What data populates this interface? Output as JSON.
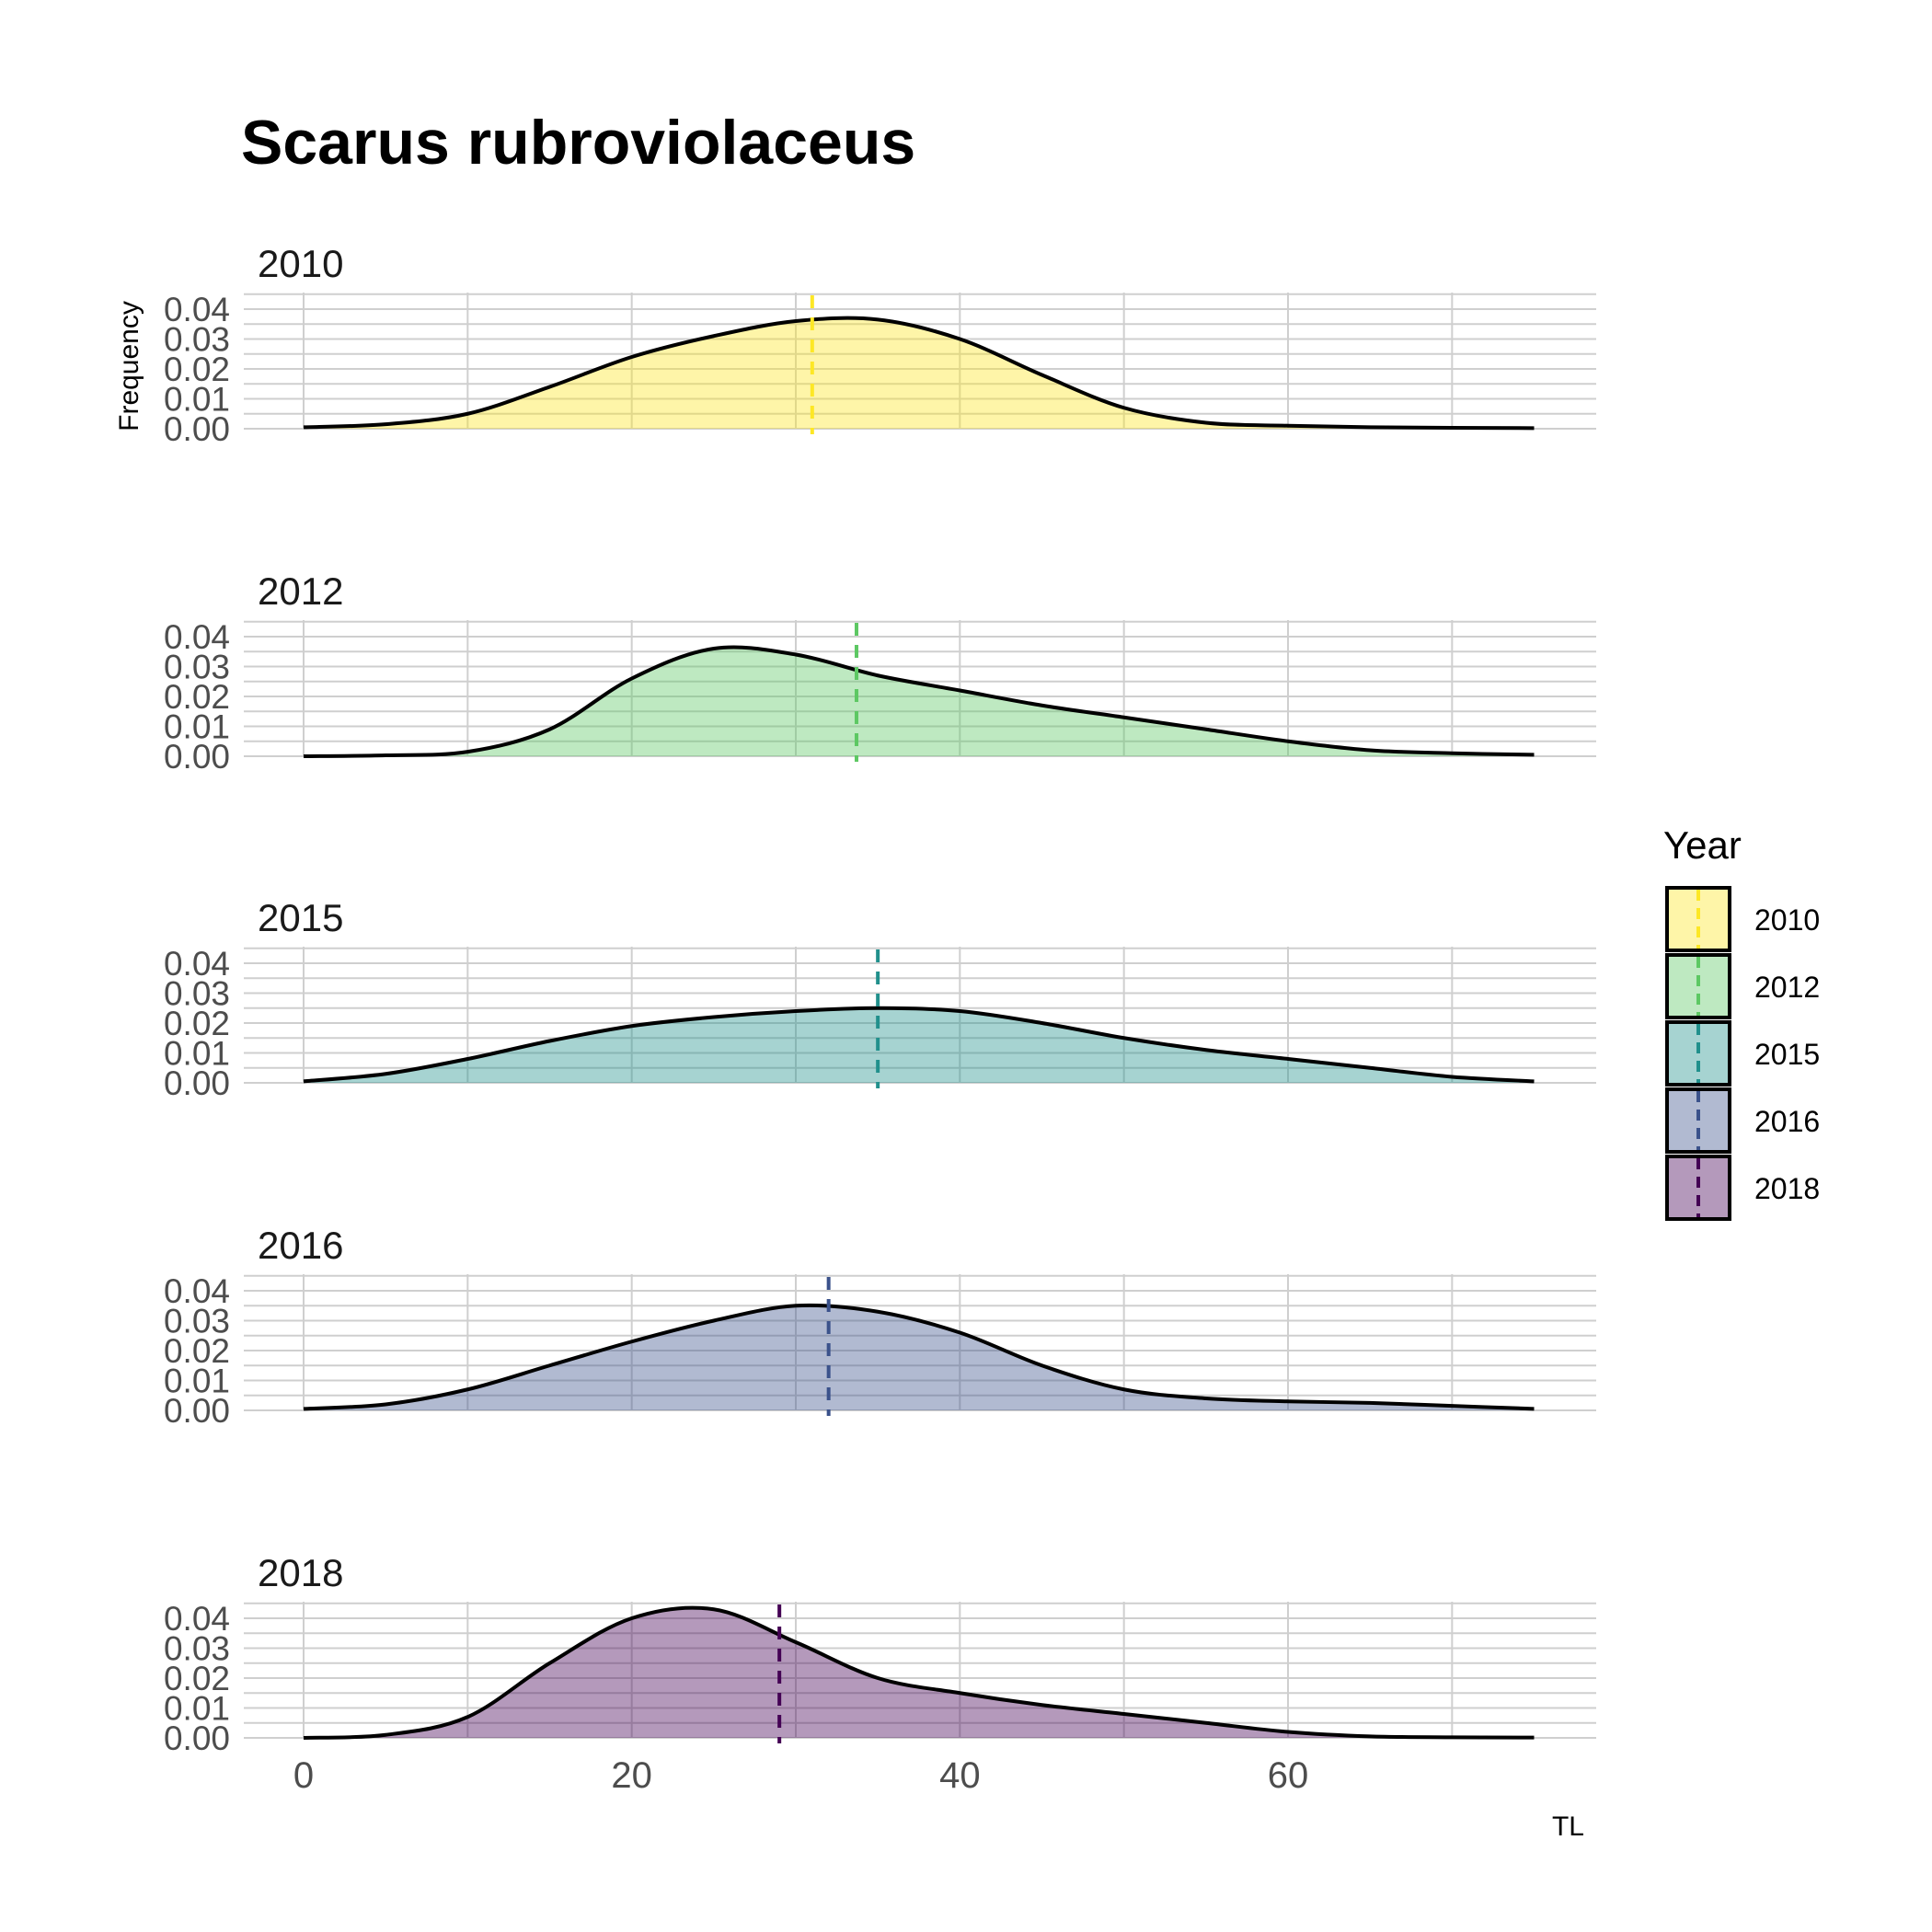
{
  "chart_data": {
    "type": "area",
    "title": "Scarus rubroviolaceus",
    "xlabel": "TL",
    "ylabel": "Frequency",
    "xlim": [
      0,
      75
    ],
    "ylim": [
      0,
      0.045
    ],
    "x_ticks": [
      0,
      20,
      40,
      60
    ],
    "x_tick_labels": [
      "0",
      "20",
      "40",
      "60"
    ],
    "y_ticks": [
      0,
      0.01,
      0.02,
      0.03,
      0.04
    ],
    "y_tick_labels": [
      "0.00",
      "0.01",
      "0.02",
      "0.03",
      "0.04"
    ],
    "grid": true,
    "legend": {
      "title": "Year",
      "placement": "right"
    },
    "x": [
      0,
      5,
      10,
      15,
      20,
      25,
      30,
      35,
      40,
      45,
      50,
      55,
      60,
      65,
      70,
      75
    ],
    "series": [
      {
        "name": "2010",
        "color": "#FDE725",
        "mean": 31,
        "values": [
          0.0005,
          0.0015,
          0.005,
          0.014,
          0.024,
          0.031,
          0.036,
          0.0365,
          0.03,
          0.018,
          0.007,
          0.002,
          0.001,
          0.0005,
          0.0003,
          0.0002
        ]
      },
      {
        "name": "2012",
        "color": "#5DC863",
        "mean": 33.7,
        "values": [
          0.0,
          0.0003,
          0.0015,
          0.009,
          0.026,
          0.036,
          0.034,
          0.027,
          0.022,
          0.017,
          0.013,
          0.009,
          0.005,
          0.002,
          0.001,
          0.0005
        ]
      },
      {
        "name": "2015",
        "color": "#21908C",
        "mean": 35,
        "values": [
          0.0005,
          0.003,
          0.008,
          0.014,
          0.019,
          0.022,
          0.024,
          0.025,
          0.024,
          0.02,
          0.015,
          0.011,
          0.008,
          0.005,
          0.002,
          0.0005
        ]
      },
      {
        "name": "2016",
        "color": "#3B528B",
        "mean": 32,
        "values": [
          0.0005,
          0.002,
          0.007,
          0.015,
          0.023,
          0.03,
          0.035,
          0.033,
          0.026,
          0.015,
          0.007,
          0.004,
          0.003,
          0.0025,
          0.0015,
          0.0005
        ]
      },
      {
        "name": "2018",
        "color": "#440154",
        "mean": 29,
        "values": [
          0.0,
          0.001,
          0.007,
          0.025,
          0.04,
          0.043,
          0.032,
          0.02,
          0.015,
          0.011,
          0.008,
          0.005,
          0.002,
          0.0005,
          0.0002,
          0.0001
        ]
      }
    ]
  }
}
